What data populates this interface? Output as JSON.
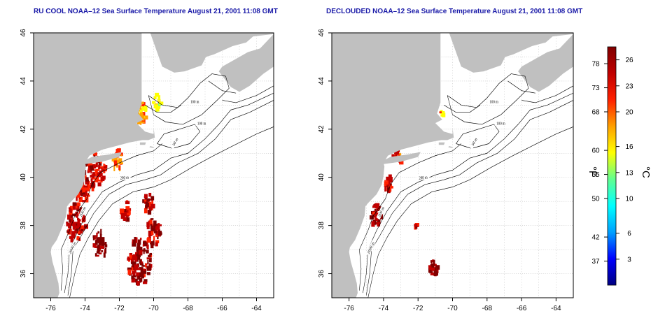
{
  "panels": {
    "left": {
      "title": "RU COOL NOAA–12 Sea Surface Temperature August 21, 2001 11:08 GMT",
      "mode": "full"
    },
    "right": {
      "title": "DECLOUDED NOAA–12 Sea Surface Temperature August 21, 2001 11:08 GMT",
      "mode": "declouded"
    }
  },
  "axes": {
    "lon_range": [
      -77,
      -63
    ],
    "lat_range": [
      35,
      46
    ],
    "x_ticks": [
      "-76",
      "-74",
      "-72",
      "-70",
      "-68",
      "-66",
      "-64"
    ],
    "y_ticks": [
      "36",
      "38",
      "40",
      "42",
      "44",
      "46"
    ],
    "grid": "dotted"
  },
  "contour_labels": [
    "100 m",
    "100 m",
    "50 m",
    "200 m",
    "200 m",
    "2000 m"
  ],
  "colorbar": {
    "fahrenheit_ticks": [
      "78",
      "73",
      "68",
      "60",
      "55",
      "50",
      "42",
      "37"
    ],
    "celsius_ticks": [
      "26",
      "23",
      "20",
      "16",
      "13",
      "10",
      "6",
      "3"
    ],
    "fahrenheit_unit": "°F",
    "celsius_unit": "°C",
    "colors": [
      "#000080",
      "#0000ff",
      "#00a0ff",
      "#00ffff",
      "#60ff90",
      "#ffff00",
      "#ffa000",
      "#ff2000",
      "#c00000",
      "#800000"
    ]
  },
  "colors": {
    "land": "#c0c0c0",
    "title": "#1a1aa8",
    "contour": "#000000"
  }
}
